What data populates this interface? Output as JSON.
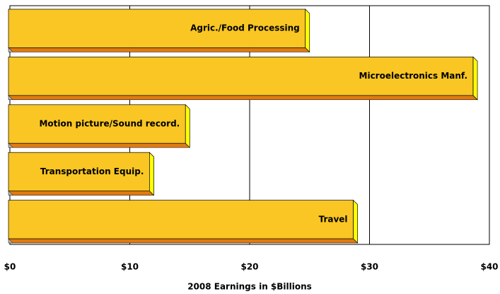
{
  "chart_data": {
    "type": "bar",
    "orientation": "horizontal",
    "x_label": "2008 Earnings in $Billions",
    "categories": [
      "Agric./Food Processing",
      "Microelectronics Manf.",
      "Motion picture/Sound record.",
      "Transportation Equip.",
      "Travel"
    ],
    "values": [
      25,
      39,
      15,
      12,
      29
    ],
    "color": "#f9c623",
    "xlim": [
      0,
      40
    ],
    "xticks": [
      {
        "value": 0,
        "label": "$0"
      },
      {
        "value": 10,
        "label": "$10"
      },
      {
        "value": 20,
        "label": "$20"
      },
      {
        "value": 30,
        "label": "$30"
      },
      {
        "value": 40,
        "label": "$40"
      }
    ],
    "grid": true
  }
}
